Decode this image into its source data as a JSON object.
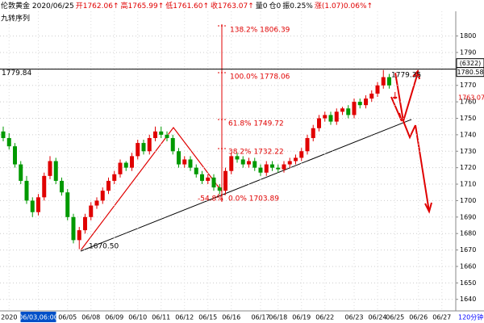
{
  "header": {
    "items": [
      {
        "text": "伦敦黄金 2020/06/25",
        "color": "#000000"
      },
      {
        "text": "开1762.06↑",
        "color": "#e00000"
      },
      {
        "text": "高1765.99↑",
        "color": "#e00000"
      },
      {
        "text": "低1761.60↑",
        "color": "#e00000"
      },
      {
        "text": "收1763.07↑",
        "color": "#e00000"
      },
      {
        "text": "量0",
        "color": "#000000"
      },
      {
        "text": "仓0",
        "color": "#000000"
      },
      {
        "text": "振0.25%",
        "color": "#000000"
      },
      {
        "text": "涨(1.07)0.06%↑",
        "color": "#e00000"
      }
    ],
    "indicator": "九转序列"
  },
  "chart_data": {
    "type": "candlestick",
    "period": "120分钟",
    "categories": [
      null,
      "2020",
      null,
      null,
      null,
      null,
      "06/03,06:00",
      null,
      null,
      null,
      null,
      "06/05",
      null,
      null,
      null,
      "06/08",
      null,
      null,
      null,
      "06/09",
      null,
      null,
      null,
      "06/10",
      null,
      null,
      null,
      "06/11",
      null,
      null,
      null,
      "06/12",
      null,
      null,
      null,
      "06/15",
      null,
      null,
      null,
      "06/16",
      null,
      null,
      null,
      null,
      "06/17",
      null,
      null,
      "06/18",
      null,
      null,
      null,
      "06/19",
      null,
      null,
      null,
      "06/22",
      null,
      null,
      null,
      null,
      "06/23",
      null,
      null,
      null,
      "06/24",
      null,
      null,
      "06/25",
      null,
      null,
      null,
      "06/26",
      null,
      null,
      null,
      "06/27"
    ],
    "open": [
      1742,
      1738,
      1733,
      1722,
      1712,
      1700,
      1693,
      1702,
      1715,
      1724,
      1712,
      1705,
      1690,
      1676,
      1682,
      1690,
      1697,
      1700,
      1706,
      1712,
      1716,
      1723,
      1720,
      1727,
      1735,
      1730,
      1738,
      1742,
      1740,
      1738,
      1730,
      1722,
      1725,
      1720,
      1716,
      1712,
      1714,
      1708,
      1706,
      1718,
      1727,
      1725,
      1722,
      1724,
      1720,
      1717,
      1722,
      1720,
      1719,
      1722,
      1724,
      1726,
      1730,
      1738,
      1744,
      1750,
      1752,
      1748,
      1754,
      1756,
      1752,
      1760,
      1758,
      1762,
      1765,
      1770,
      1775,
      1762.06,
      null,
      null,
      null,
      null,
      null,
      null,
      null,
      null
    ],
    "high": [
      1745,
      1741,
      1735,
      1724,
      1715,
      1702,
      1704,
      1717,
      1727,
      1726,
      1714,
      1707,
      1692,
      1684,
      1692,
      1699,
      1702,
      1708,
      1714,
      1718,
      1725,
      1724,
      1729,
      1737,
      1737,
      1740,
      1745,
      1745,
      1742,
      1740,
      1732,
      1727,
      1727,
      1722,
      1718,
      1716,
      1716,
      1710,
      1720,
      1729,
      1729,
      1727,
      1726,
      1726,
      1722,
      1724,
      1724,
      1722,
      1724,
      1726,
      1728,
      1732,
      1740,
      1746,
      1752,
      1754,
      1754,
      1756,
      1757,
      1758,
      1762,
      1762,
      1764,
      1767,
      1772,
      1779.35,
      1777,
      1765.99,
      null,
      null,
      null,
      null,
      null,
      null,
      null,
      null
    ],
    "low": [
      1736,
      1731,
      1720,
      1710,
      1698,
      1690,
      1691,
      1700,
      1713,
      1710,
      1703,
      1688,
      1674,
      1670.5,
      1680,
      1688,
      1695,
      1698,
      1704,
      1710,
      1714,
      1718,
      1718,
      1725,
      1728,
      1728,
      1736,
      1738,
      1736,
      1728,
      1720,
      1720,
      1718,
      1714,
      1710,
      1710,
      1706,
      1703.89,
      1704,
      1716,
      1723,
      1720,
      1720,
      1718,
      1715,
      1715,
      1718,
      1717,
      1717,
      1720,
      1722,
      1724,
      1728,
      1736,
      1742,
      1748,
      1746,
      1746,
      1752,
      1750,
      1750,
      1756,
      1756,
      1760,
      1763,
      1768,
      1768,
      1761.6,
      null,
      null,
      null,
      null,
      null,
      null,
      null,
      null
    ],
    "close": [
      1738,
      1733,
      1722,
      1712,
      1700,
      1693,
      1702,
      1715,
      1724,
      1712,
      1705,
      1690,
      1676,
      1682,
      1690,
      1697,
      1700,
      1706,
      1712,
      1716,
      1723,
      1720,
      1727,
      1735,
      1730,
      1738,
      1742,
      1740,
      1738,
      1730,
      1722,
      1725,
      1720,
      1716,
      1712,
      1714,
      1708,
      1706,
      1718,
      1727,
      1725,
      1722,
      1724,
      1720,
      1717,
      1722,
      1720,
      1719,
      1722,
      1724,
      1726,
      1730,
      1738,
      1744,
      1750,
      1752,
      1748,
      1754,
      1756,
      1752,
      1760,
      1758,
      1762,
      1765,
      1770,
      1775,
      1770,
      1763.07,
      null,
      null,
      null,
      null,
      null,
      null,
      null,
      null
    ],
    "up_color": "#e00000",
    "down_color": "#009900",
    "ylim": [
      1633,
      1815
    ],
    "yticks": [
      1640,
      1650,
      1660,
      1670,
      1680,
      1690,
      1700,
      1710,
      1720,
      1730,
      1740,
      1750,
      1760,
      1770,
      1780,
      1790,
      1800
    ],
    "grid": true,
    "hline": {
      "value": 1779.84,
      "label": "1779.84"
    },
    "axis_marks": {
      "box_price": "1780.58",
      "count": "(6322)",
      "last_price": "1763.07"
    },
    "annotations": {
      "fib_138": "138.2% 1806.39",
      "fib_100": "100.0% 1778.06",
      "fib_618": "61.8% 1749.72",
      "fib_382": "38.2% 1732.22",
      "fib_neg": "-54.8%",
      "fib_0": "0.0% 1703.89",
      "low": "1670.50",
      "high": "1779.35"
    }
  }
}
